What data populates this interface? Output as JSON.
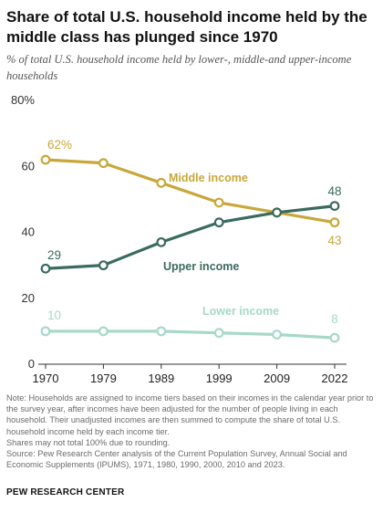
{
  "title": "Share of total U.S. household income held by the middle class has plunged since 1970",
  "subtitle": "% of total U.S. household income held by lower-, middle-and upper-income households",
  "notes": [
    "Note: Households are assigned to income tiers based on their incomes in the calendar year prior to the survey year, after incomes have been adjusted for the number of people living in each household. Their unadjusted incomes are then summed to compute the share of total U.S. household income held by each income tier.",
    "Shares may not total 100% due to rounding.",
    "Source: Pew Research Center analysis of the Current Population Survey, Annual Social and Economic Supplements (IPUMS), 1971, 1980, 1990, 2000, 2010 and 2023."
  ],
  "source_label": "PEW RESEARCH CENTER",
  "colors": {
    "middle": "#c9a73a",
    "upper": "#3a6b5e",
    "lower": "#a7d9c7",
    "grid": "#d9d9d9",
    "axis": "#333333"
  },
  "chart_data": {
    "type": "line",
    "x": [
      "1970",
      "1979",
      "1989",
      "1999",
      "2009",
      "2022"
    ],
    "ylim": [
      0,
      80
    ],
    "yticks": [
      0,
      20,
      40,
      60,
      80
    ],
    "ytick_labels": [
      "0",
      "20",
      "40",
      "60",
      "80%"
    ],
    "grid": false,
    "series": [
      {
        "key": "middle",
        "name": "Middle income",
        "values": [
          62,
          61,
          55,
          49,
          46,
          43
        ],
        "start_label": "62%",
        "end_label": "43"
      },
      {
        "key": "upper",
        "name": "Upper income",
        "values": [
          29,
          30,
          37,
          43,
          46,
          48
        ],
        "start_label": "29",
        "end_label": "48"
      },
      {
        "key": "lower",
        "name": "Lower income",
        "values": [
          10,
          10,
          10,
          9.5,
          9,
          8
        ],
        "start_label": "10",
        "end_label": "8"
      }
    ]
  }
}
